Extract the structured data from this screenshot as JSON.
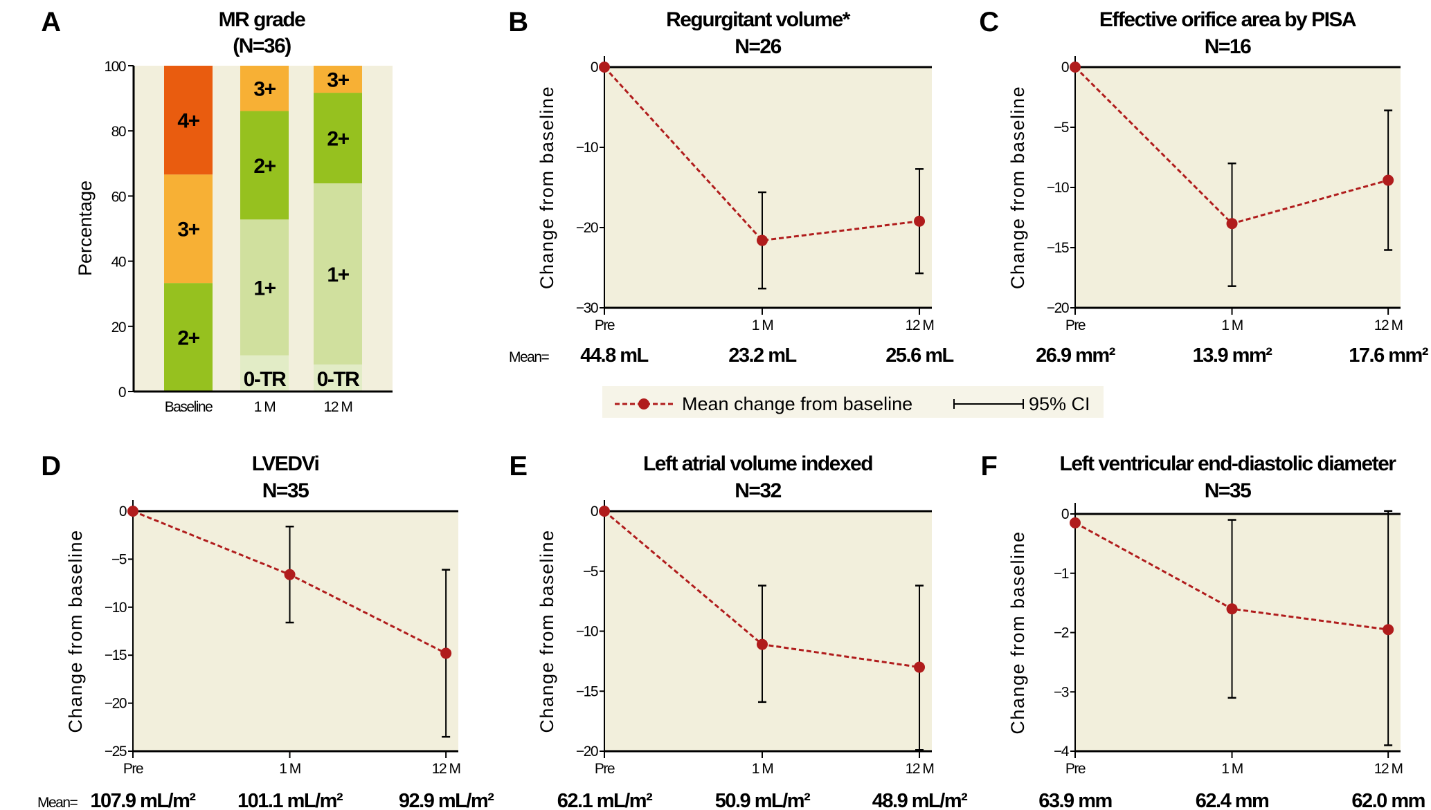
{
  "legend": {
    "mean_label": "Mean change from baseline",
    "ci_label": "95% CI",
    "colors": {
      "mean": "#b01c1c",
      "ci": "#000000",
      "background": "#f6f4e8"
    }
  },
  "colors": {
    "plot_background": "#f2efdc",
    "grade_4": "#e95c0f",
    "grade_3": "#f7b035",
    "grade_2": "#96c11f",
    "grade_1": "#d0e09e",
    "grade_0": "#e2ecc6"
  },
  "chart_data": [
    {
      "panel": "A",
      "type": "bar",
      "stacked": true,
      "title": "MR grade",
      "subtitle": "(N=36)",
      "ylabel": "Percentage",
      "ylim": [
        0,
        100
      ],
      "yticks": [
        "0",
        "20",
        "40",
        "60",
        "80",
        "100"
      ],
      "categories": [
        "Baseline",
        "1 M",
        "12 M"
      ],
      "series": [
        {
          "name": "0-TR",
          "color": "#e2ecc6",
          "values": [
            0,
            11.1,
            8.3
          ]
        },
        {
          "name": "1+",
          "color": "#d0e09e",
          "values": [
            0,
            41.7,
            55.6
          ]
        },
        {
          "name": "2+",
          "color": "#96c11f",
          "values": [
            33.3,
            33.3,
            27.8
          ]
        },
        {
          "name": "3+",
          "color": "#f7b035",
          "values": [
            33.3,
            13.9,
            8.3
          ]
        },
        {
          "name": "4+",
          "color": "#e95c0f",
          "values": [
            33.4,
            0,
            0
          ]
        }
      ]
    },
    {
      "panel": "B",
      "type": "line",
      "title": "Regurgitant volume*",
      "subtitle": "N=26",
      "ylabel": "Change from baseline",
      "ylim": [
        -30,
        0
      ],
      "yticks": [
        "0",
        "−10",
        "−20",
        "−30"
      ],
      "ytick_values": [
        0,
        -10,
        -20,
        -30
      ],
      "categories": [
        "Pre",
        "1 M",
        "12 M"
      ],
      "values": [
        0,
        -21.6,
        -19.2
      ],
      "ci_low": [
        null,
        -27.6,
        -25.7
      ],
      "ci_high": [
        null,
        -15.6,
        -12.7
      ],
      "mean_prefix": "Mean=",
      "means": [
        "44.8 mL",
        "23.2 mL",
        "25.6 mL"
      ]
    },
    {
      "panel": "C",
      "type": "line",
      "title": "Effective orifice area by PISA",
      "subtitle": "N=16",
      "ylabel": "Change from baseline",
      "ylim": [
        -20,
        0
      ],
      "yticks": [
        "0",
        "−5",
        "−10",
        "−15",
        "−20"
      ],
      "ytick_values": [
        0,
        -5,
        -10,
        -15,
        -20
      ],
      "categories": [
        "Pre",
        "1 M",
        "12 M"
      ],
      "values": [
        0,
        -13.0,
        -9.4
      ],
      "ci_low": [
        null,
        -18.2,
        -15.2
      ],
      "ci_high": [
        null,
        -8.0,
        -3.6
      ],
      "means": [
        "26.9 mm²",
        "13.9 mm²",
        "17.6 mm²"
      ]
    },
    {
      "panel": "D",
      "type": "line",
      "title": "LVEDVi",
      "subtitle": "N=35",
      "ylabel": "Change from baseline",
      "ylim": [
        -25,
        0
      ],
      "yticks": [
        "0",
        "−5",
        "−10",
        "−15",
        "−20",
        "−25"
      ],
      "ytick_values": [
        0,
        -5,
        -10,
        -15,
        -20,
        -25
      ],
      "categories": [
        "Pre",
        "1 M",
        "12 M"
      ],
      "values": [
        0,
        -6.6,
        -14.8
      ],
      "ci_low": [
        null,
        -11.6,
        -23.5
      ],
      "ci_high": [
        null,
        -1.6,
        -6.1
      ],
      "mean_prefix": "Mean=",
      "means": [
        "107.9 mL/m²",
        "101.1 mL/m²",
        "92.9 mL/m²"
      ]
    },
    {
      "panel": "E",
      "type": "line",
      "title": "Left atrial volume indexed",
      "subtitle": "N=32",
      "ylabel": "Change from baseline",
      "ylim": [
        -20,
        0
      ],
      "yticks": [
        "0",
        "−5",
        "−10",
        "−15",
        "−20"
      ],
      "ytick_values": [
        0,
        -5,
        -10,
        -15,
        -20
      ],
      "categories": [
        "Pre",
        "1 M",
        "12 M"
      ],
      "values": [
        0,
        -11.1,
        -13.0
      ],
      "ci_low": [
        null,
        -15.9,
        -19.9
      ],
      "ci_high": [
        null,
        -6.2,
        -6.2
      ],
      "means": [
        "62.1 mL/m²",
        "50.9 mL/m²",
        "48.9 mL/m²"
      ]
    },
    {
      "panel": "F",
      "type": "line",
      "title": "Left ventricular end-diastolic diameter",
      "subtitle": "N=35",
      "ylabel": "Change from baseline",
      "ylim": [
        -4,
        0
      ],
      "yticks": [
        "0",
        "−1",
        "−2",
        "−3",
        "−4"
      ],
      "ytick_values": [
        0,
        -1,
        -2,
        -3,
        -4
      ],
      "categories": [
        "Pre",
        "1 M",
        "12 M"
      ],
      "values": [
        -0.15,
        -1.6,
        -1.95
      ],
      "ci_low": [
        null,
        -3.1,
        -3.9
      ],
      "ci_high": [
        null,
        -0.1,
        0.05
      ],
      "means": [
        "63.9 mm",
        "62.4 mm",
        "62.0 mm"
      ]
    }
  ]
}
